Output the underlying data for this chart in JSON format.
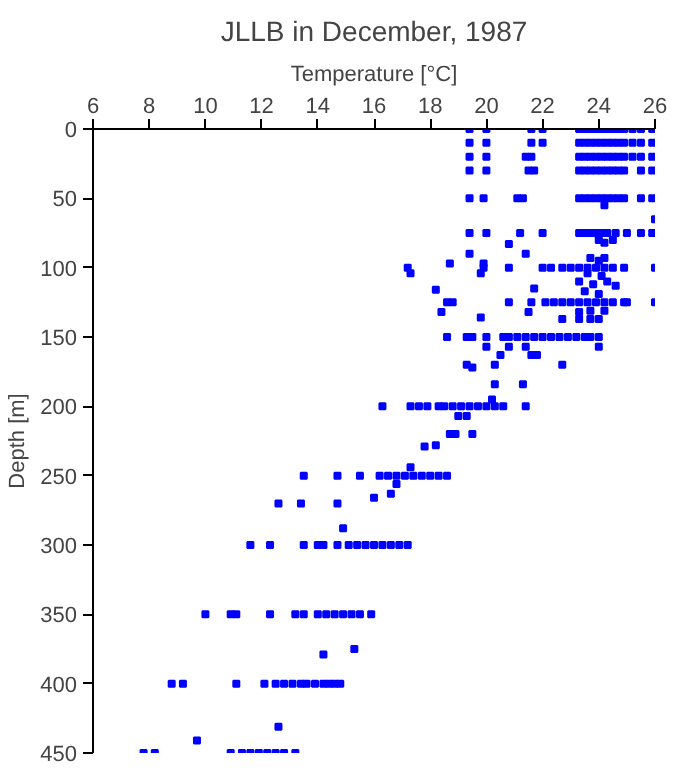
{
  "chart_data": {
    "type": "scatter",
    "title": "JLLB in December, 1987",
    "xlabel": "Temperature [°C]",
    "ylabel": "Depth [m]",
    "xlim": [
      6,
      26
    ],
    "xticks": [
      6,
      8,
      10,
      12,
      14,
      16,
      18,
      20,
      22,
      24,
      26
    ],
    "ylim": [
      450,
      0
    ],
    "yticks": [
      0,
      50,
      100,
      150,
      200,
      250,
      300,
      350,
      400,
      450
    ],
    "marker": "square",
    "grid": false,
    "series": [
      {
        "color": "#0000ff",
        "x": [
          19.4,
          20.0,
          21.6,
          22.0,
          23.3,
          23.5,
          23.7,
          23.9,
          24.1,
          24.3,
          24.5,
          24.7,
          24.9,
          25.2,
          25.5,
          25.9,
          19.4,
          20.0,
          21.6,
          22.0,
          23.3,
          23.5,
          23.7,
          23.9,
          24.1,
          24.3,
          24.5,
          24.7,
          24.9,
          25.2,
          25.5,
          25.9,
          19.4,
          20.0,
          21.4,
          21.6,
          23.3,
          23.5,
          23.7,
          23.9,
          24.1,
          24.3,
          24.5,
          24.7,
          24.9,
          25.2,
          25.5,
          25.9,
          19.4,
          20.0,
          21.5,
          21.7,
          23.3,
          23.5,
          23.7,
          23.9,
          24.1,
          24.3,
          24.5,
          24.7,
          24.9,
          25.5,
          25.9,
          19.4,
          19.9,
          21.1,
          21.3,
          23.3,
          23.5,
          23.7,
          23.9,
          24.1,
          24.3,
          24.5,
          24.7,
          24.9,
          25.5,
          25.9,
          24.2,
          26.0,
          19.4,
          20.0,
          21.2,
          22.0,
          23.3,
          23.5,
          23.7,
          23.9,
          24.1,
          24.3,
          24.6,
          25.0,
          25.5,
          25.9,
          20.8,
          21.4,
          19.4,
          24.0,
          24.2,
          24.5,
          23.7,
          24.0,
          24.2,
          18.7,
          19.9,
          17.2,
          19.9,
          20.8,
          22.0,
          22.3,
          22.7,
          23.0,
          23.3,
          23.6,
          23.9,
          24.2,
          24.5,
          24.9,
          26.0,
          17.3,
          19.8,
          23.6,
          24.1,
          18.2,
          21.7,
          23.3,
          23.8,
          24.3,
          24.6,
          23.5,
          24.0,
          18.6,
          18.8,
          20.8,
          21.6,
          22.1,
          22.4,
          22.7,
          23.0,
          23.3,
          23.6,
          23.9,
          24.2,
          24.5,
          24.9,
          25.0,
          26.0,
          18.4,
          21.5,
          23.3,
          23.7,
          24.2,
          19.8,
          22.7,
          23.3,
          23.7,
          24.0,
          18.6,
          19.3,
          19.5,
          20.0,
          20.6,
          20.8,
          21.1,
          21.4,
          21.7,
          22.0,
          22.3,
          22.6,
          22.9,
          23.2,
          23.5,
          23.7,
          24.0,
          20.0,
          20.8,
          21.4,
          24.0,
          20.5,
          21.6,
          21.8,
          19.3,
          20.3,
          22.7,
          19.5,
          20.3,
          21.3,
          20.2,
          16.3,
          17.3,
          17.6,
          17.9,
          18.3,
          18.5,
          18.8,
          19.1,
          19.4,
          19.7,
          20.0,
          20.3,
          20.6,
          21.4,
          19.0,
          19.3,
          18.7,
          18.9,
          19.5,
          17.8,
          18.2,
          17.3,
          13.5,
          14.7,
          15.5,
          16.2,
          16.5,
          16.8,
          17.1,
          17.4,
          17.7,
          18.0,
          18.3,
          18.6,
          16.8,
          16.6,
          16.0,
          12.6,
          13.4,
          14.7,
          14.9,
          11.6,
          12.3,
          13.5,
          14.0,
          14.2,
          14.7,
          15.1,
          15.4,
          15.7,
          16.0,
          16.3,
          16.6,
          16.9,
          17.2,
          10.0,
          10.9,
          11.1,
          12.3,
          13.2,
          13.5,
          14.0,
          14.3,
          14.6,
          14.9,
          15.2,
          15.5,
          15.9,
          15.3,
          14.2,
          8.8,
          9.2,
          11.1,
          12.1,
          12.5,
          12.8,
          13.1,
          13.4,
          13.6,
          13.9,
          14.2,
          14.4,
          14.6,
          14.8,
          12.6,
          9.7,
          7.8,
          8.2,
          10.9,
          11.3,
          11.6,
          11.9,
          12.2,
          12.5,
          12.8,
          13.2
        ],
        "values": [
          0,
          0,
          0,
          0,
          0,
          0,
          0,
          0,
          0,
          0,
          0,
          0,
          0,
          0,
          0,
          0,
          10,
          10,
          10,
          10,
          10,
          10,
          10,
          10,
          10,
          10,
          10,
          10,
          10,
          10,
          10,
          10,
          20,
          20,
          20,
          20,
          20,
          20,
          20,
          20,
          20,
          20,
          20,
          20,
          20,
          20,
          20,
          20,
          30,
          30,
          30,
          30,
          30,
          30,
          30,
          30,
          30,
          30,
          30,
          30,
          30,
          30,
          30,
          50,
          50,
          50,
          50,
          50,
          50,
          50,
          50,
          50,
          50,
          50,
          50,
          50,
          50,
          50,
          55,
          65,
          75,
          75,
          75,
          75,
          75,
          75,
          75,
          75,
          75,
          75,
          75,
          75,
          75,
          75,
          83,
          90,
          90,
          80,
          82,
          80,
          93,
          95,
          93,
          97,
          97,
          100,
          100,
          100,
          100,
          100,
          100,
          100,
          100,
          100,
          100,
          100,
          100,
          100,
          100,
          104,
          104,
          104,
          106,
          116,
          115,
          110,
          112,
          110,
          113,
          117,
          119,
          125,
          125,
          125,
          125,
          125,
          125,
          125,
          125,
          125,
          125,
          125,
          125,
          125,
          125,
          125,
          125,
          132,
          132,
          132,
          131,
          131,
          136,
          137,
          137,
          137,
          137,
          150,
          150,
          150,
          150,
          150,
          150,
          150,
          150,
          150,
          150,
          150,
          150,
          150,
          150,
          150,
          150,
          150,
          157,
          157,
          157,
          157,
          163,
          163,
          163,
          170,
          170,
          170,
          172,
          184,
          184,
          195,
          200,
          200,
          200,
          200,
          200,
          200,
          200,
          200,
          200,
          200,
          200,
          200,
          200,
          200,
          207,
          207,
          220,
          220,
          220,
          229,
          228,
          244,
          250,
          250,
          250,
          250,
          250,
          250,
          250,
          250,
          250,
          250,
          250,
          250,
          256,
          263,
          266,
          270,
          270,
          270,
          288,
          300,
          300,
          300,
          300,
          300,
          300,
          300,
          300,
          300,
          300,
          300,
          300,
          300,
          300,
          350,
          350,
          350,
          350,
          350,
          350,
          350,
          350,
          350,
          350,
          350,
          350,
          350,
          375,
          379,
          400,
          400,
          400,
          400,
          400,
          400,
          400,
          400,
          400,
          400,
          400,
          400,
          400,
          400,
          431,
          441,
          450,
          450,
          450,
          450,
          450,
          450,
          450,
          450,
          450,
          450
        ]
      }
    ]
  }
}
